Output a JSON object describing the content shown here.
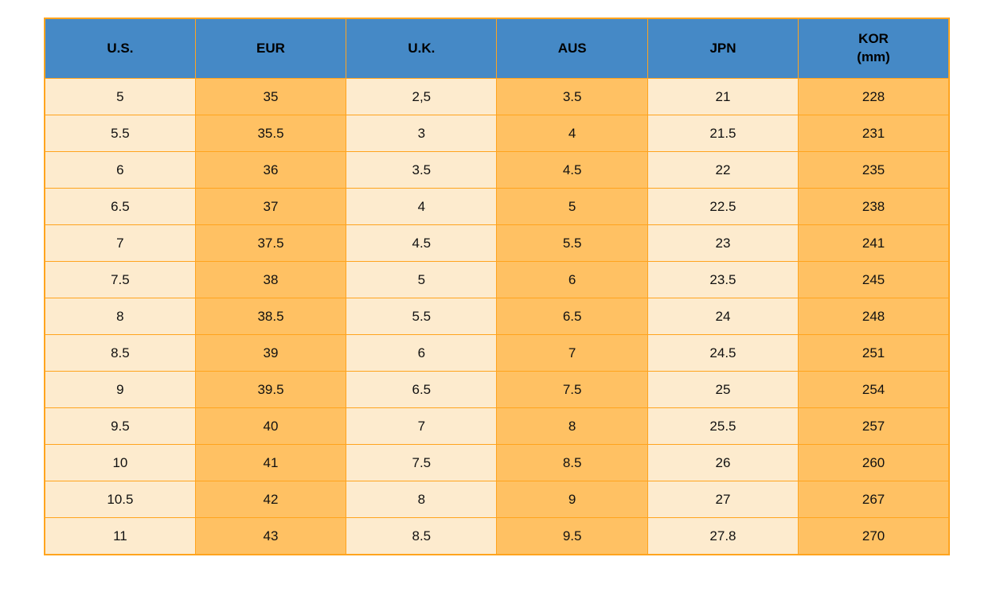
{
  "table": {
    "colors": {
      "header_bg": "#4589C6",
      "header_text": "#000000",
      "cell_cream": "#FDEBCE",
      "cell_orange": "#FFC163",
      "grid_border": "#FFA41E",
      "cell_text": "#111111",
      "page_bg": "#FFFFFF"
    },
    "columns": [
      {
        "label": "U.S.",
        "sublabel": ""
      },
      {
        "label": "EUR",
        "sublabel": ""
      },
      {
        "label": "U.K.",
        "sublabel": ""
      },
      {
        "label": "AUS",
        "sublabel": ""
      },
      {
        "label": "JPN",
        "sublabel": ""
      },
      {
        "label": "KOR",
        "sublabel": "(mm)"
      }
    ]
  },
  "chart_data": {
    "type": "table",
    "columns": [
      "U.S.",
      "EUR",
      "U.K.",
      "AUS",
      "JPN",
      "KOR (mm)"
    ],
    "rows": [
      [
        "5",
        "35",
        "2,5",
        "3.5",
        "21",
        "228"
      ],
      [
        "5.5",
        "35.5",
        "3",
        "4",
        "21.5",
        "231"
      ],
      [
        "6",
        "36",
        "3.5",
        "4.5",
        "22",
        "235"
      ],
      [
        "6.5",
        "37",
        "4",
        "5",
        "22.5",
        "238"
      ],
      [
        "7",
        "37.5",
        "4.5",
        "5.5",
        "23",
        "241"
      ],
      [
        "7.5",
        "38",
        "5",
        "6",
        "23.5",
        "245"
      ],
      [
        "8",
        "38.5",
        "5.5",
        "6.5",
        "24",
        "248"
      ],
      [
        "8.5",
        "39",
        "6",
        "7",
        "24.5",
        "251"
      ],
      [
        "9",
        "39.5",
        "6.5",
        "7.5",
        "25",
        "254"
      ],
      [
        "9.5",
        "40",
        "7",
        "8",
        "25.5",
        "257"
      ],
      [
        "10",
        "41",
        "7.5",
        "8.5",
        "26",
        "260"
      ],
      [
        "10.5",
        "42",
        "8",
        "9",
        "27",
        "267"
      ],
      [
        "11",
        "43",
        "8.5",
        "9.5",
        "27.8",
        "270"
      ]
    ]
  }
}
